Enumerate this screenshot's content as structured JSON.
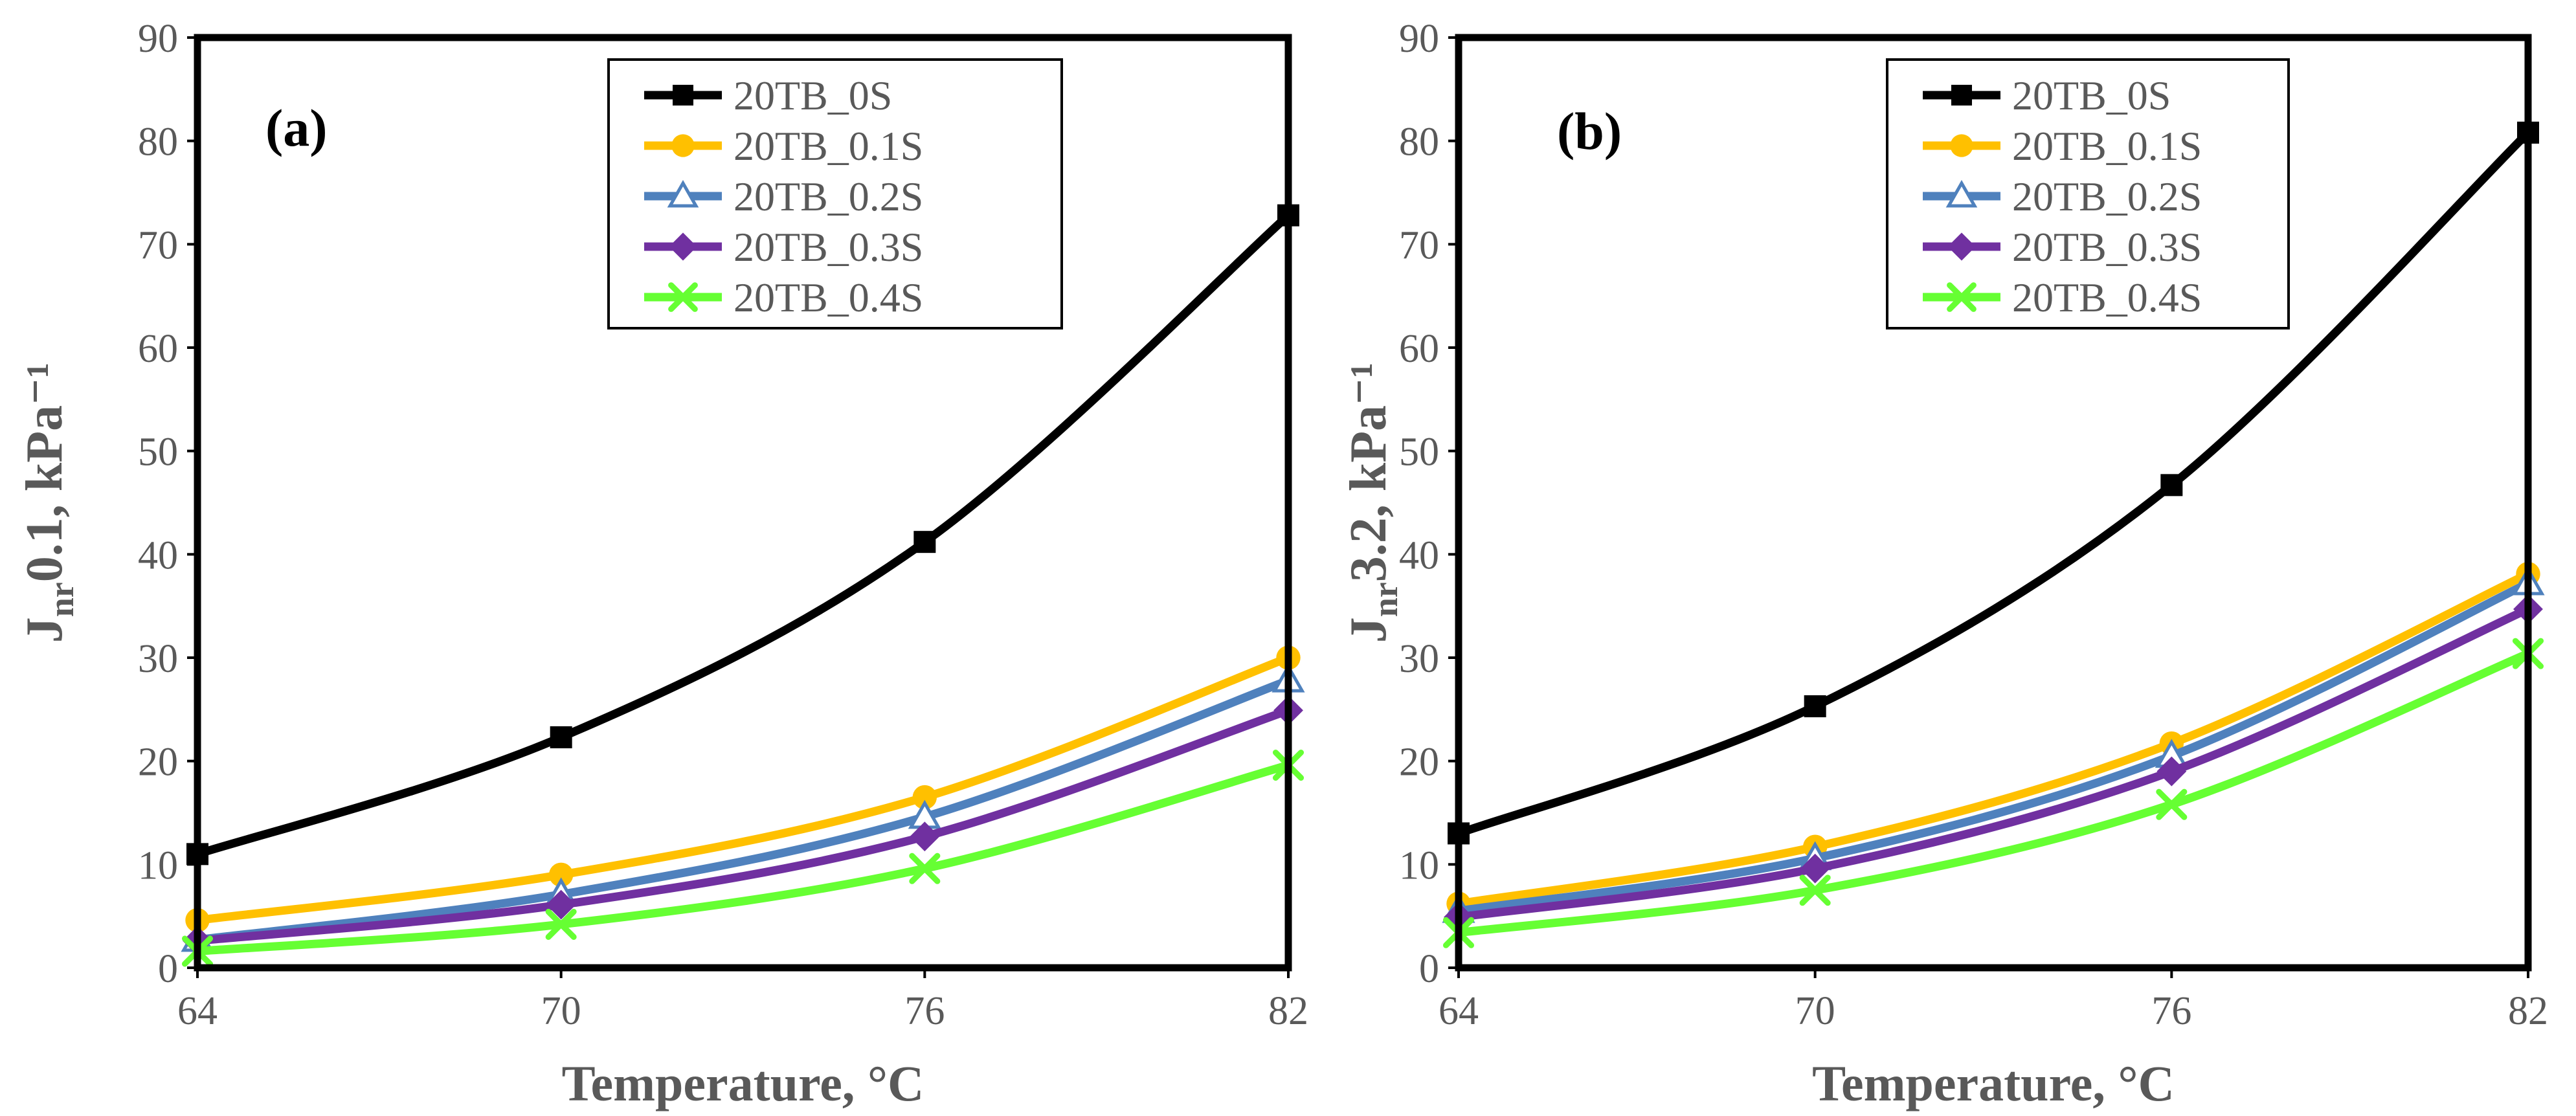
{
  "chart_data": [
    {
      "type": "line",
      "panel_label": "(a)",
      "ylabel": {
        "main": "J",
        "sub": "nr",
        "rest": "0.1, kPa⁻¹"
      },
      "xlabel": "Temperature, °C",
      "x": [
        64,
        70,
        76,
        82
      ],
      "xlim": [
        64,
        82
      ],
      "ylim": [
        0,
        90
      ],
      "yticks": [
        0,
        10,
        20,
        30,
        40,
        50,
        60,
        70,
        80,
        90
      ],
      "grid": false,
      "legend_position": "top-center",
      "series": [
        {
          "name": "20TB_0S",
          "color": "#000000",
          "marker": "square",
          "values": [
            11.0,
            22.3,
            41.2,
            72.8
          ]
        },
        {
          "name": "20TB_0.1S",
          "color": "#FFC000",
          "marker": "circle",
          "values": [
            4.6,
            9.0,
            16.5,
            30.0
          ]
        },
        {
          "name": "20TB_0.2S",
          "color": "#4F81BD",
          "marker": "triangle",
          "values": [
            2.7,
            7.1,
            14.6,
            27.8
          ]
        },
        {
          "name": "20TB_0.3S",
          "color": "#7030A0",
          "marker": "diamond",
          "values": [
            2.6,
            6.1,
            12.7,
            24.9
          ]
        },
        {
          "name": "20TB_0.4S",
          "color": "#66FF33",
          "marker": "x",
          "values": [
            1.6,
            4.2,
            9.6,
            19.6
          ]
        }
      ]
    },
    {
      "type": "line",
      "panel_label": "(b)",
      "ylabel": {
        "main": "J",
        "sub": "nr",
        "rest": "3.2, kPa⁻¹"
      },
      "xlabel": "Temperature, °C",
      "x": [
        64,
        70,
        76,
        82
      ],
      "xlim": [
        64,
        82
      ],
      "ylim": [
        0,
        90
      ],
      "yticks": [
        0,
        10,
        20,
        30,
        40,
        50,
        60,
        70,
        80,
        90
      ],
      "grid": false,
      "legend_position": "top-center",
      "series": [
        {
          "name": "20TB_0S",
          "color": "#000000",
          "marker": "square",
          "values": [
            13.0,
            25.3,
            46.7,
            80.8
          ]
        },
        {
          "name": "20TB_0.1S",
          "color": "#FFC000",
          "marker": "circle",
          "values": [
            6.2,
            11.7,
            21.7,
            38.1
          ]
        },
        {
          "name": "20TB_0.2S",
          "color": "#4F81BD",
          "marker": "triangle",
          "values": [
            5.5,
            10.6,
            20.5,
            37.2
          ]
        },
        {
          "name": "20TB_0.3S",
          "color": "#7030A0",
          "marker": "diamond",
          "values": [
            4.9,
            9.6,
            19.0,
            34.7
          ]
        },
        {
          "name": "20TB_0.4S",
          "color": "#66FF33",
          "marker": "x",
          "values": [
            3.4,
            7.5,
            15.8,
            30.4
          ]
        }
      ]
    }
  ]
}
